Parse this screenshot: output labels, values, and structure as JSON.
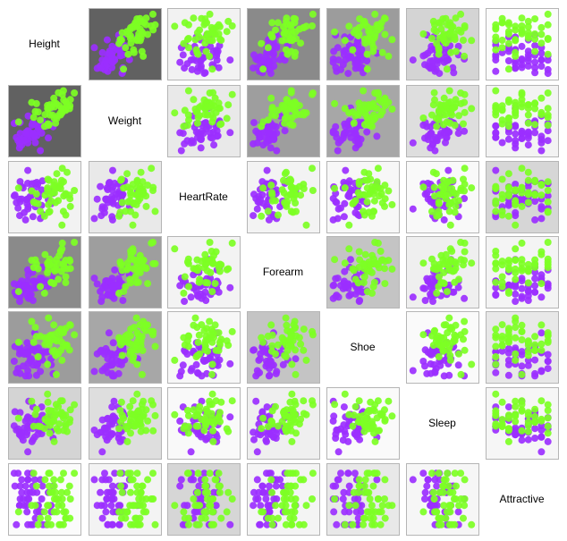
{
  "chart_data": {
    "type": "scatter",
    "variables": [
      "Height",
      "Weight",
      "HeartRate",
      "Forearm",
      "Shoe",
      "Sleep",
      "Attractive"
    ],
    "groups": [
      {
        "color": "#9b2fff"
      },
      {
        "color": "#7dff24"
      }
    ],
    "panel_backgrounds": [
      [
        "",
        "#616161",
        "#f2f2f2",
        "#8a8a8a",
        "#9c9c9c",
        "#d4d4d4",
        "#fbfbfb"
      ],
      [
        "#616161",
        "",
        "#e9e9e9",
        "#9e9e9e",
        "#a7a7a7",
        "#dedede",
        "#f3f3f3"
      ],
      [
        "#f2f2f2",
        "#e9e9e9",
        "",
        "#f3f3f3",
        "#f7f7f7",
        "#f9f9f9",
        "#d6d6d6"
      ],
      [
        "#8a8a8a",
        "#9e9e9e",
        "#f3f3f3",
        "",
        "#c4c4c4",
        "#efefef",
        "#f4f4f4"
      ],
      [
        "#9c9c9c",
        "#a7a7a7",
        "#f7f7f7",
        "#c4c4c4",
        "",
        "#fafafa",
        "#e8e8e8"
      ],
      [
        "#d4d4d4",
        "#dedede",
        "#f9f9f9",
        "#efefef",
        "#fafafa",
        "",
        "#f6f6f6"
      ],
      [
        "#fbfbfb",
        "#f3f3f3",
        "#d6d6d6",
        "#f4f4f4",
        "#e8e8e8",
        "#f6f6f6",
        ""
      ]
    ],
    "grid": false,
    "legend": "none"
  }
}
